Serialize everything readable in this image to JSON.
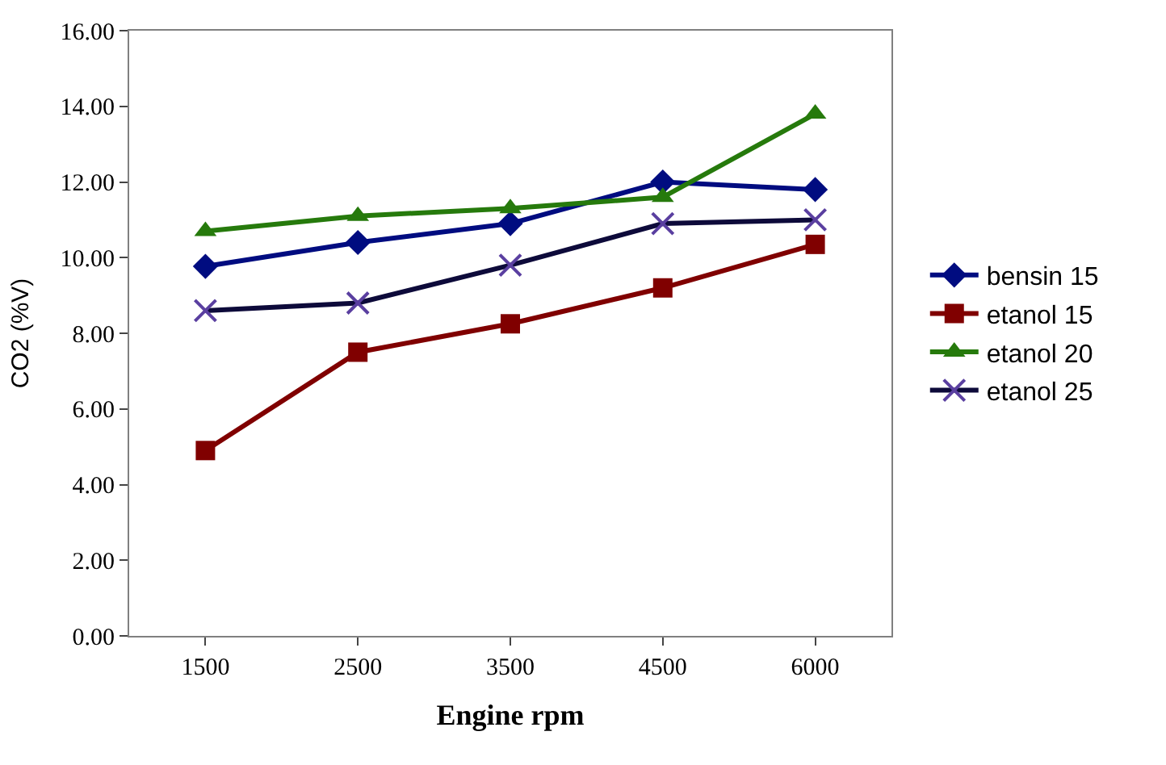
{
  "chart_data": {
    "type": "line",
    "xlabel": "Engine rpm",
    "ylabel": "CO2 (%V)",
    "categories": [
      "1500",
      "2500",
      "3500",
      "4500",
      "6000"
    ],
    "series": [
      {
        "name": "bensin 15",
        "color": "#000c80",
        "marker": "diamond",
        "values": [
          9.77,
          10.4,
          10.9,
          12.0,
          11.8
        ]
      },
      {
        "name": "etanol 15",
        "color": "#800000",
        "marker": "square",
        "values": [
          4.9,
          7.5,
          8.25,
          9.2,
          10.35
        ]
      },
      {
        "name": "etanol 20",
        "color": "#267a0c",
        "marker": "triangle",
        "values": [
          10.7,
          11.1,
          11.3,
          11.6,
          13.8
        ]
      },
      {
        "name": "etanol 25",
        "color": "#0d0a3a",
        "marker": "cross",
        "values": [
          8.6,
          8.8,
          9.8,
          10.9,
          11.0
        ]
      }
    ],
    "ylim": [
      0,
      16
    ],
    "yticks": [
      {
        "value": 0,
        "label": "0.00"
      },
      {
        "value": 2,
        "label": "2.00"
      },
      {
        "value": 4,
        "label": "4.00"
      },
      {
        "value": 6,
        "label": "6.00"
      },
      {
        "value": 8,
        "label": "8.00"
      },
      {
        "value": 10,
        "label": "10.00"
      },
      {
        "value": 12,
        "label": "12.00"
      },
      {
        "value": 14,
        "label": "14.00"
      },
      {
        "value": 16,
        "label": "16.00"
      }
    ],
    "grid": false,
    "legend": "right",
    "line_style": "solid"
  }
}
